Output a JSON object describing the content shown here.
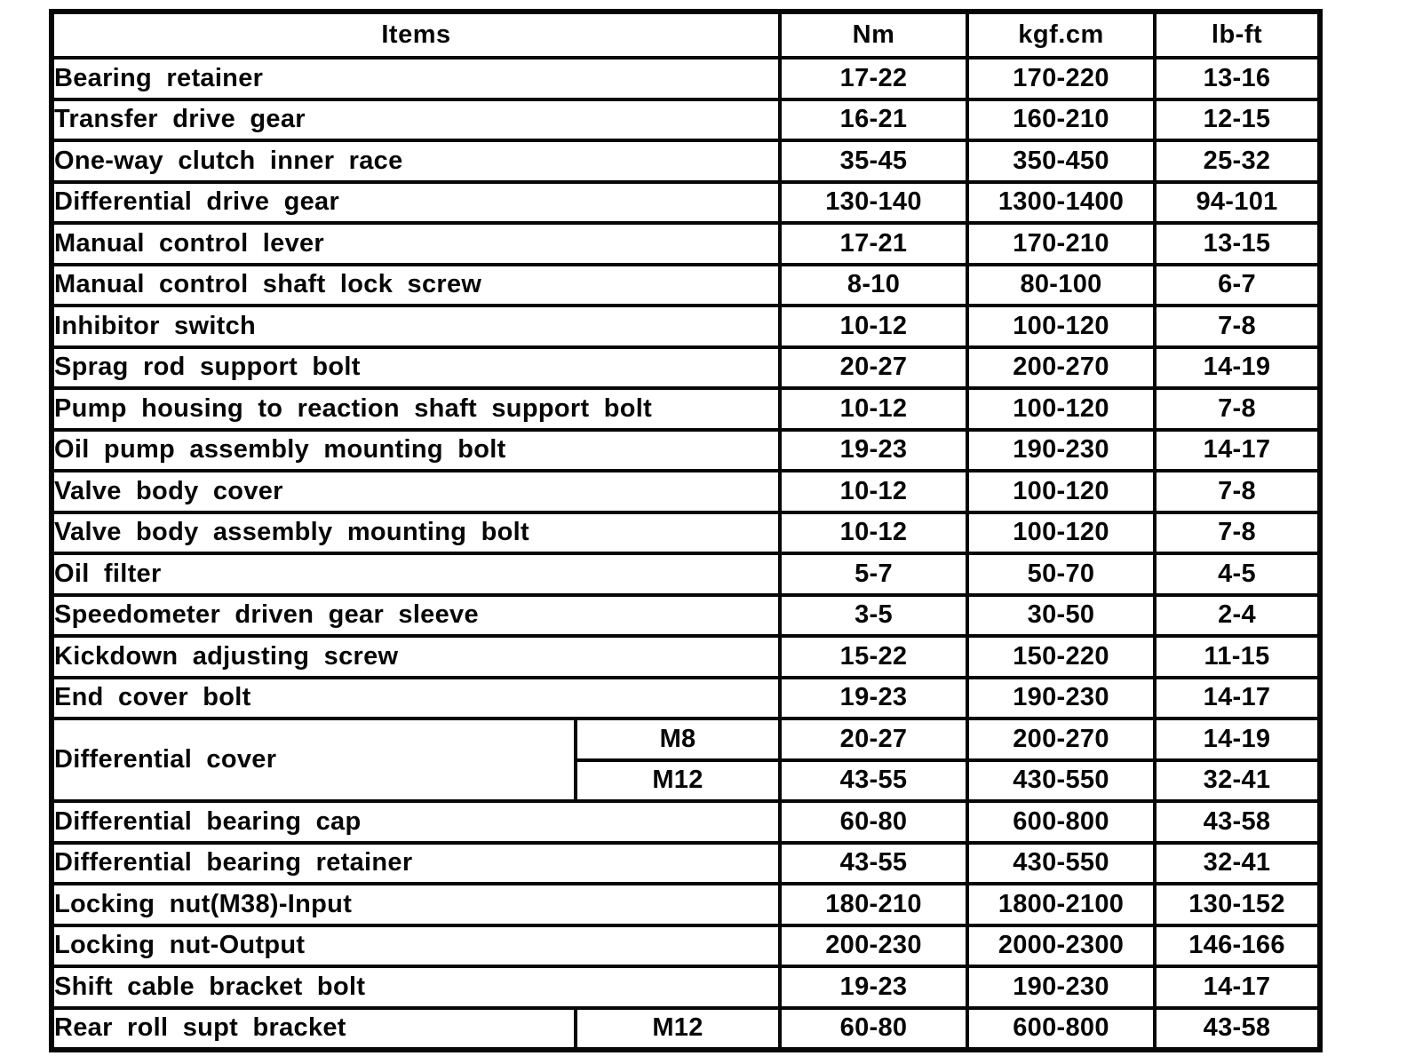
{
  "table": {
    "headers": {
      "items": "Items",
      "nm": "Nm",
      "kgfcm": "kgf.cm",
      "lbft": "lb-ft"
    },
    "rows": [
      {
        "item": "Bearing retainer",
        "nm": "17-22",
        "kgfcm": "170-220",
        "lbft": "13-16"
      },
      {
        "item": "Transfer drive gear",
        "nm": "16-21",
        "kgfcm": "160-210",
        "lbft": "12-15"
      },
      {
        "item": "One-way clutch inner race",
        "nm": "35-45",
        "kgfcm": "350-450",
        "lbft": "25-32"
      },
      {
        "item": "Differential drive gear",
        "nm": "130-140",
        "kgfcm": "1300-1400",
        "lbft": "94-101"
      },
      {
        "item": "Manual control lever",
        "nm": "17-21",
        "kgfcm": "170-210",
        "lbft": "13-15"
      },
      {
        "item": "Manual control shaft lock screw",
        "nm": "8-10",
        "kgfcm": "80-100",
        "lbft": "6-7"
      },
      {
        "item": "Inhibitor switch",
        "nm": "10-12",
        "kgfcm": "100-120",
        "lbft": "7-8"
      },
      {
        "item": "Sprag rod support bolt",
        "nm": "20-27",
        "kgfcm": "200-270",
        "lbft": "14-19"
      },
      {
        "item": "Pump housing to reaction shaft support bolt",
        "nm": "10-12",
        "kgfcm": "100-120",
        "lbft": "7-8"
      },
      {
        "item": "Oil pump assembly mounting bolt",
        "nm": "19-23",
        "kgfcm": "190-230",
        "lbft": "14-17"
      },
      {
        "item": "Valve body cover",
        "nm": "10-12",
        "kgfcm": "100-120",
        "lbft": "7-8"
      },
      {
        "item": "Valve body assembly mounting bolt",
        "nm": "10-12",
        "kgfcm": "100-120",
        "lbft": "7-8"
      },
      {
        "item": "Oil filter",
        "nm": "5-7",
        "kgfcm": "50-70",
        "lbft": "4-5"
      },
      {
        "item": "Speedometer driven gear sleeve",
        "nm": "3-5",
        "kgfcm": "30-50",
        "lbft": "2-4"
      },
      {
        "item": "Kickdown adjusting screw",
        "nm": "15-22",
        "kgfcm": "150-220",
        "lbft": "11-15"
      },
      {
        "item": "End cover bolt",
        "nm": "19-23",
        "kgfcm": "190-230",
        "lbft": "14-17"
      },
      {
        "item": "Differential cover",
        "size": "M8",
        "nm": "20-27",
        "kgfcm": "200-270",
        "lbft": "14-19"
      },
      {
        "size": "M12",
        "nm": "43-55",
        "kgfcm": "430-550",
        "lbft": "32-41"
      },
      {
        "item": "Differential bearing cap",
        "nm": "60-80",
        "kgfcm": "600-800",
        "lbft": "43-58"
      },
      {
        "item": "Differential bearing retainer",
        "nm": "43-55",
        "kgfcm": "430-550",
        "lbft": "32-41"
      },
      {
        "item": "Locking nut(M38)-Input",
        "nm": "180-210",
        "kgfcm": "1800-2100",
        "lbft": "130-152"
      },
      {
        "item": "Locking nut-Output",
        "nm": "200-230",
        "kgfcm": "2000-2300",
        "lbft": "146-166"
      },
      {
        "item": "Shift cable bracket bolt",
        "nm": "19-23",
        "kgfcm": "190-230",
        "lbft": "14-17"
      },
      {
        "item": "Rear roll supt bracket",
        "size": "M12",
        "nm": "60-80",
        "kgfcm": "600-800",
        "lbft": "43-58"
      }
    ]
  }
}
